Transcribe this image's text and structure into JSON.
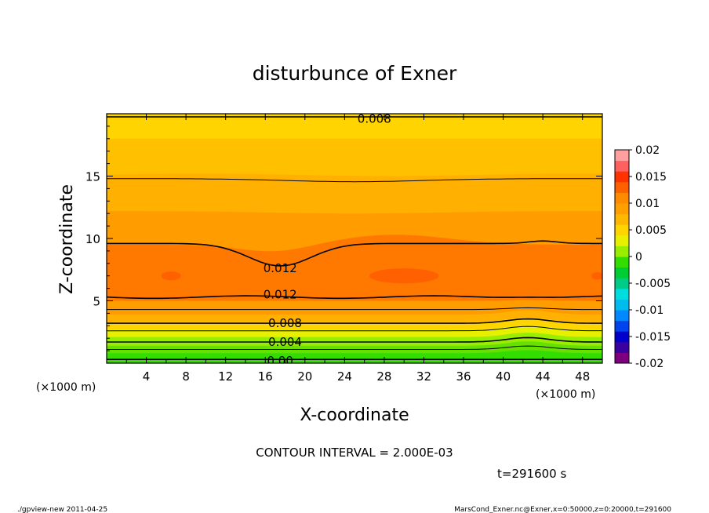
{
  "chart_data": {
    "type": "heatmap",
    "title": "disturbunce of Exner",
    "xlabel": "X-coordinate",
    "ylabel": "Z-coordinate",
    "x_unit": "(×1000 m)",
    "y_unit": "(×1000 m)",
    "xlim": [
      0,
      50
    ],
    "ylim": [
      0,
      20
    ],
    "x_ticks": [
      "4",
      "8",
      "12",
      "16",
      "20",
      "24",
      "28",
      "32",
      "36",
      "40",
      "44",
      "48"
    ],
    "y_ticks": [
      "5",
      "10",
      "15"
    ],
    "colorbar": {
      "min": -0.02,
      "max": 0.02,
      "labels": [
        "0.02",
        "0.015",
        "0.01",
        "0.005",
        "0",
        "-0.005",
        "-0.01",
        "-0.015",
        "-0.02"
      ],
      "colors": [
        "#7f007f",
        "#3a00a0",
        "#0000cc",
        "#0044ee",
        "#0088ff",
        "#00bbee",
        "#00dddd",
        "#00cc88",
        "#00cc33",
        "#33dd00",
        "#99ee00",
        "#e8f000",
        "#ffd400",
        "#ffb800",
        "#ffa000",
        "#ff8c00",
        "#ff6000",
        "#ff3300",
        "#ff6060",
        "#ffa0a0"
      ]
    },
    "contour_labels": [
      {
        "text": "0.008",
        "x": 27,
        "z": 19.6
      },
      {
        "text": "0.012",
        "x": 17.5,
        "z": 7.6
      },
      {
        "text": "0.012",
        "x": 17.5,
        "z": 5.5
      },
      {
        "text": "0.008",
        "x": 18,
        "z": 3.2
      },
      {
        "text": "0.004",
        "x": 18,
        "z": 1.7
      },
      {
        "text": "0.00",
        "x": 17.5,
        "z": 0.2
      }
    ],
    "contour_interval_text": "CONTOUR INTERVAL = 2.000E-03",
    "time_text": "t=291600 s"
  },
  "footer": {
    "left": "./gpview-new  2011-04-25",
    "right": "MarsCond_Exner.nc@Exner,x=0:50000,z=0:20000,t=291600"
  }
}
